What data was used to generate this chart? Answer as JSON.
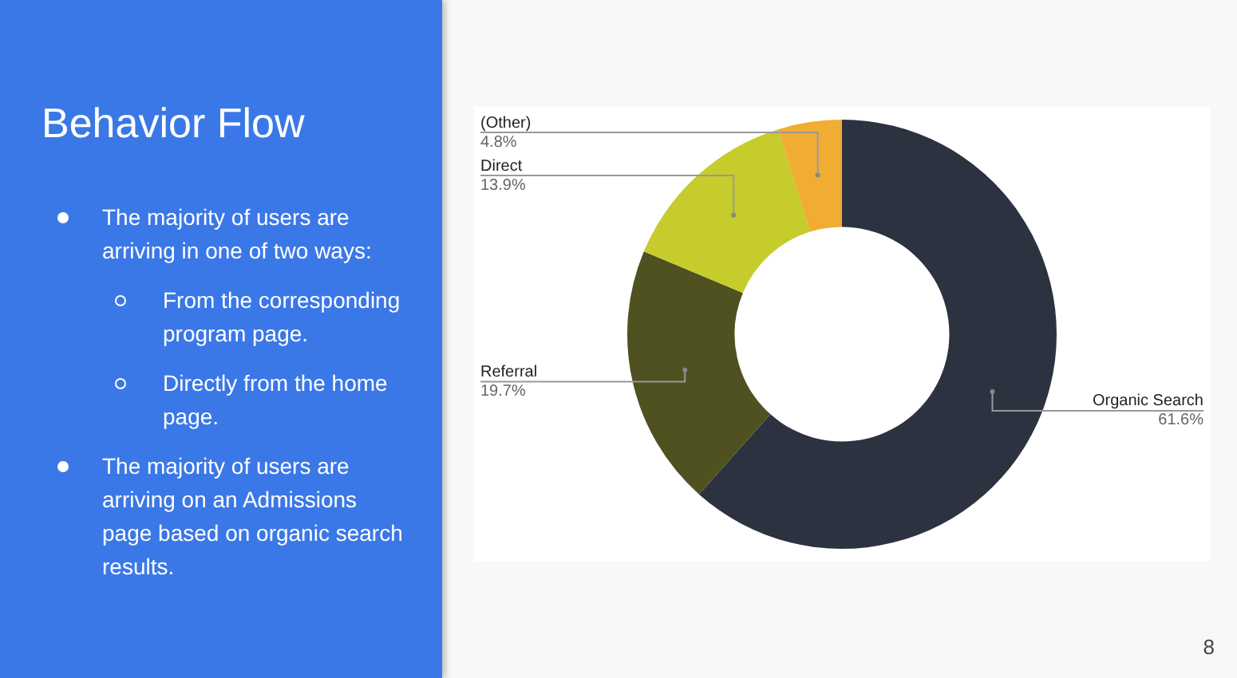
{
  "chart_data": {
    "type": "donut",
    "title": "Behavior Flow",
    "categories": [
      "Organic Search",
      "Referral",
      "Direct",
      "(Other)"
    ],
    "values": [
      61.6,
      19.7,
      13.9,
      4.8
    ],
    "value_labels": [
      "61.6%",
      "19.7%",
      "13.9%",
      "4.8%"
    ],
    "colors": [
      "#2d3240",
      "#4f5120",
      "#c5cc2b",
      "#f0ac33"
    ],
    "annotations": [
      "The majority of users are arriving in one of two ways:",
      "From the corresponding program page.",
      "Directly from the home page.",
      "The majority of users are arriving on an Admissions page based on organic search results.",
      "8"
    ]
  }
}
